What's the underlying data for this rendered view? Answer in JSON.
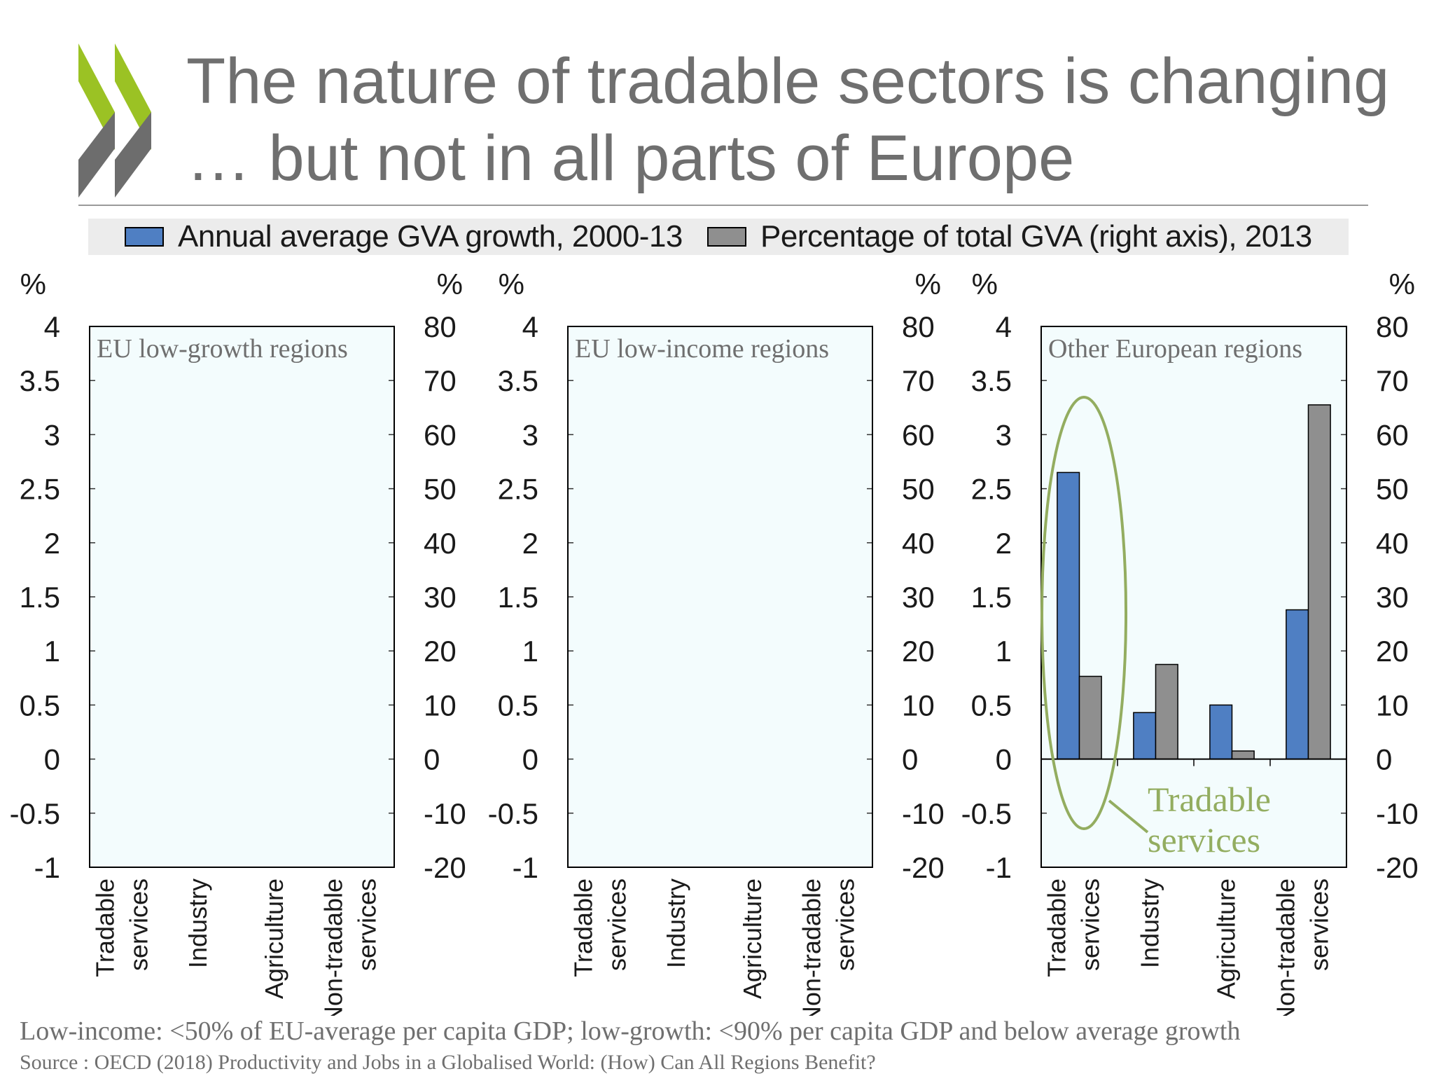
{
  "header": {
    "title_line1": "The nature of tradable sectors is changing",
    "title_line2": "… but not in all parts of Europe"
  },
  "colors": {
    "growth_bar": "#4f7fc3",
    "share_bar": "#8f8f8f",
    "panel_bg": "#f3fcfd",
    "annotation": "#93ad60",
    "logo_green": "#9bc224",
    "logo_grey": "#6d6d6d"
  },
  "icons": [
    "oecd-chevron-logo-icon"
  ],
  "chart_data": {
    "type": "bar",
    "legend": {
      "placement": "top",
      "entries": [
        {
          "name": "Annual average GVA growth, 2000-13",
          "axis": "left"
        },
        {
          "name": "Percentage of total GVA (right axis), 2013",
          "axis": "right"
        }
      ]
    },
    "left_axis": {
      "unit": "%",
      "ylim": [
        -1,
        4
      ],
      "ticks": [
        "4",
        "3.5",
        "3",
        "2.5",
        "2",
        "1.5",
        "1",
        "0.5",
        "0",
        "-0.5",
        "-1"
      ]
    },
    "right_axis": {
      "unit": "%",
      "ylim": [
        -20,
        80
      ],
      "ticks": [
        "80",
        "70",
        "60",
        "50",
        "40",
        "30",
        "20",
        "10",
        "0",
        "-10",
        "-20"
      ]
    },
    "categories": [
      [
        "Tradable",
        "services"
      ],
      [
        "Industry"
      ],
      [
        "Agriculture"
      ],
      [
        "Non-tradable",
        "services"
      ]
    ],
    "panels": [
      {
        "title": "EU low-growth regions",
        "series": [
          {
            "name": "Annual average GVA growth, 2000-13",
            "values": [
              null,
              null,
              null,
              null
            ]
          },
          {
            "name": "Percentage of total GVA (right axis), 2013",
            "values": [
              null,
              null,
              null,
              null
            ]
          }
        ]
      },
      {
        "title": "EU low-income regions",
        "series": [
          {
            "name": "Annual average GVA growth, 2000-13",
            "values": [
              null,
              null,
              null,
              null
            ]
          },
          {
            "name": "Percentage of total GVA (right axis), 2013",
            "values": [
              null,
              null,
              null,
              null
            ]
          }
        ]
      },
      {
        "title": "Other European regions",
        "series": [
          {
            "name": "Annual average GVA growth, 2000-13",
            "values": [
              2.65,
              0.43,
              0.5,
              1.38
            ]
          },
          {
            "name": "Percentage of total GVA (right axis), 2013",
            "values": [
              15.3,
              17.5,
              1.5,
              65.5
            ]
          }
        ],
        "annotation": {
          "lines": [
            "Tradable",
            "services"
          ],
          "category": "Tradable services"
        }
      }
    ]
  },
  "footer": {
    "note": "Low-income: <50% of EU-average per capita GDP; low-growth: <90% per capita GDP and below average growth",
    "source": "Source : OECD (2018) Productivity and Jobs in a Globalised World: (How) Can All Regions Benefit?"
  }
}
